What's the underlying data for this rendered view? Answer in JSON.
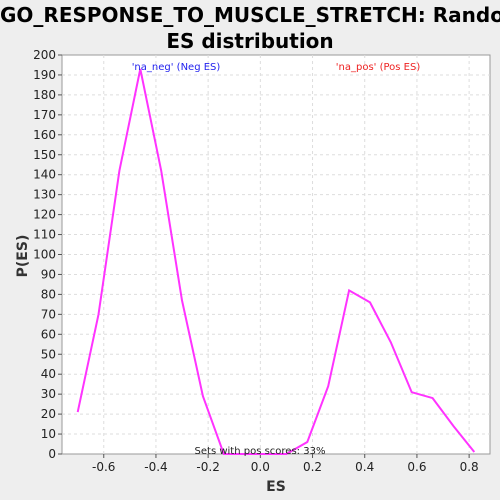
{
  "chart_data": {
    "type": "line",
    "title_line1": "GO_RESPONSE_TO_MUSCLE_STRETCH: Random",
    "title_line2": "ES distribution",
    "xlabel": "ES",
    "ylabel": "P(ES)",
    "xlim": [
      -0.76,
      0.88
    ],
    "ylim": [
      0,
      200
    ],
    "xticks": [
      -0.6,
      -0.4,
      -0.2,
      0.0,
      0.2,
      0.4,
      0.6,
      0.8
    ],
    "xtick_labels": [
      "-0.6",
      "-0.4",
      "-0.2",
      "0.0",
      "0.2",
      "0.4",
      "0.6",
      "0.8"
    ],
    "yticks": [
      0,
      10,
      20,
      30,
      40,
      50,
      60,
      70,
      80,
      90,
      100,
      110,
      120,
      130,
      140,
      150,
      160,
      170,
      180,
      190,
      200
    ],
    "grid": true,
    "line_color": "#ff33ff",
    "series": [
      {
        "x": [
          -0.7,
          -0.62,
          -0.54,
          -0.46,
          -0.38,
          -0.3,
          -0.22,
          -0.14,
          -0.06,
          0.02,
          0.1,
          0.18,
          0.26,
          0.34,
          0.42,
          0.5,
          0.58,
          0.66,
          0.74,
          0.82
        ],
        "y": [
          21,
          70,
          142,
          193,
          142,
          77,
          29,
          0,
          0,
          0,
          0,
          6,
          34,
          82,
          76,
          56,
          31,
          28,
          14,
          1
        ]
      }
    ],
    "annotations": {
      "neg": {
        "text": "'na_neg' (Neg ES)",
        "color": "#2222ee"
      },
      "pos": {
        "text": "'na_pos' (Pos ES)",
        "color": "#ee2222"
      },
      "footer": {
        "text": "Sets with pos scores: 33%",
        "color": "#222222"
      }
    }
  }
}
